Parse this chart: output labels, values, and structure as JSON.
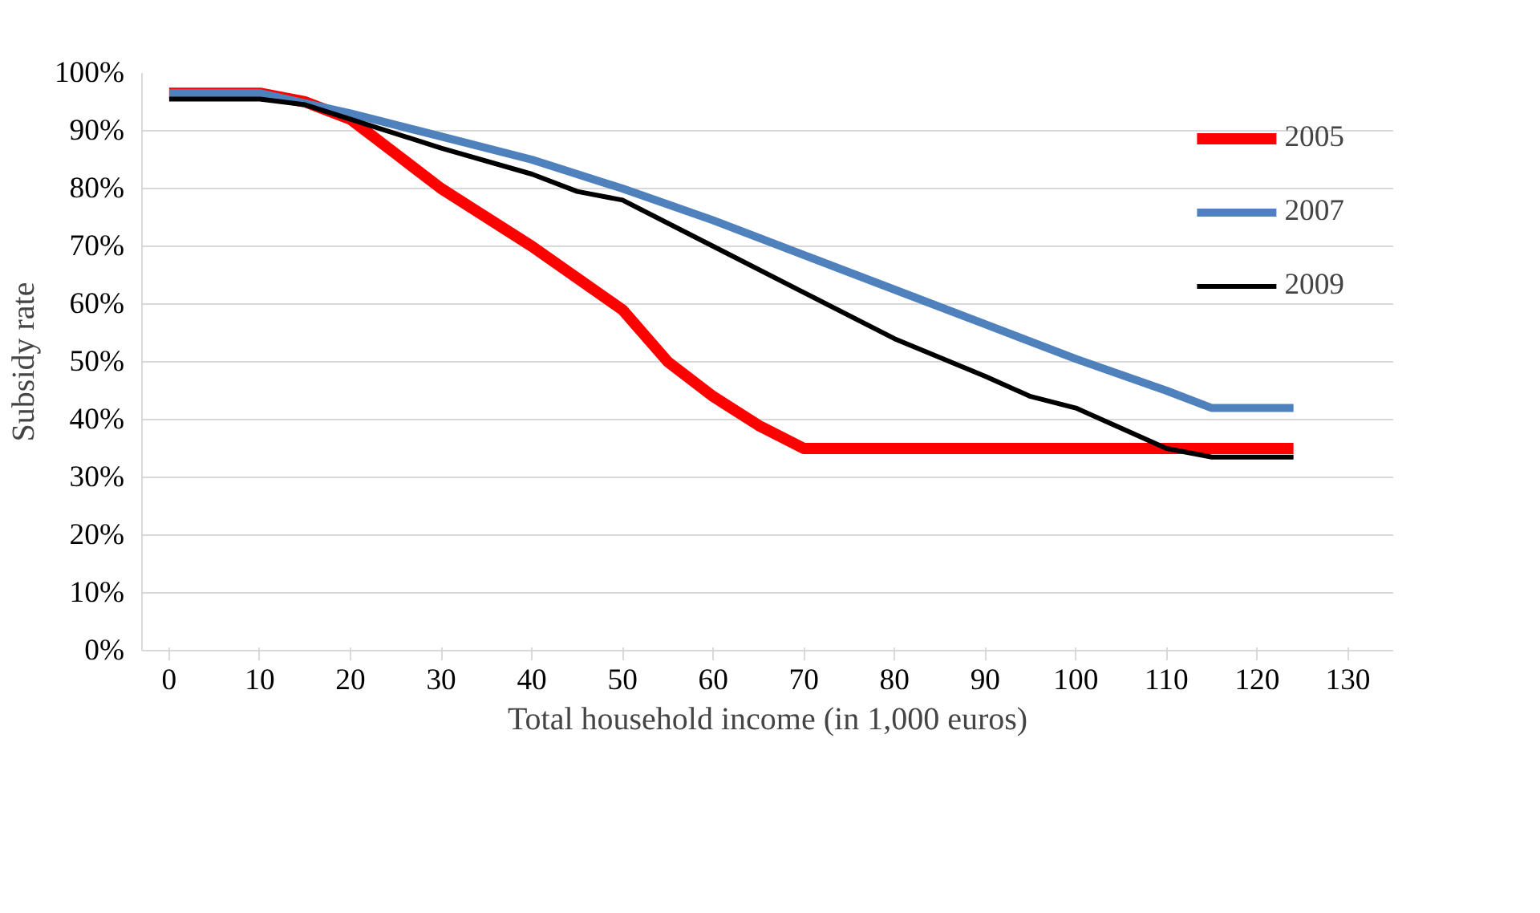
{
  "chart_data": {
    "type": "line",
    "xlabel": "Total household income (in 1,000 euros)",
    "ylabel": "Subsidy rate",
    "xlim": [
      -3,
      135
    ],
    "xticks": [
      0,
      10,
      20,
      30,
      40,
      50,
      60,
      70,
      80,
      90,
      100,
      110,
      120,
      130
    ],
    "ylim": [
      0,
      100
    ],
    "yticks": [
      {
        "value": 0,
        "label": "0%"
      },
      {
        "value": 10,
        "label": "10%"
      },
      {
        "value": 20,
        "label": "20%"
      },
      {
        "value": 30,
        "label": "30%"
      },
      {
        "value": 40,
        "label": "40%"
      },
      {
        "value": 50,
        "label": "50%"
      },
      {
        "value": 60,
        "label": "60%"
      },
      {
        "value": 70,
        "label": "70%"
      },
      {
        "value": 80,
        "label": "80%"
      },
      {
        "value": 90,
        "label": "90%"
      },
      {
        "value": 100,
        "label": "100%"
      }
    ],
    "grid": "y",
    "legend": "top right",
    "line_style": "solid",
    "marker": "none",
    "series": [
      {
        "name": "2005",
        "color": "#ff0000",
        "x": [
          0,
          10,
          15,
          20,
          25,
          30,
          40,
          50,
          55,
          60,
          65,
          70,
          75,
          90,
          110,
          124
        ],
        "values": [
          96.5,
          96.5,
          95,
          92,
          86,
          80,
          70,
          59,
          50,
          44,
          39,
          35,
          35,
          35,
          35,
          35
        ]
      },
      {
        "name": "2007",
        "color": "#4f81bd",
        "x": [
          0,
          10,
          20,
          30,
          40,
          50,
          60,
          70,
          80,
          90,
          100,
          110,
          115,
          124
        ],
        "values": [
          96.5,
          96.5,
          93,
          89,
          85,
          80,
          74.5,
          68.5,
          62.5,
          56.5,
          50.5,
          45,
          42,
          42
        ]
      },
      {
        "name": "2009",
        "color": "#000000",
        "x": [
          0,
          10,
          15,
          20,
          30,
          40,
          45,
          50,
          60,
          70,
          80,
          90,
          95,
          100,
          105,
          110,
          115,
          124
        ],
        "values": [
          95.5,
          95.5,
          94.5,
          92,
          87,
          82.5,
          79.5,
          78,
          70,
          62,
          54,
          47.5,
          44,
          42,
          38.5,
          35,
          33.5,
          33.5
        ]
      }
    ]
  }
}
